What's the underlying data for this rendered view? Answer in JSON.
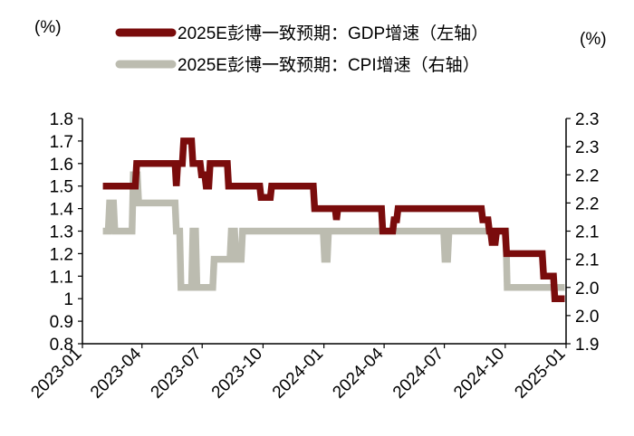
{
  "chart_data": {
    "type": "line",
    "left_unit": "(%)",
    "right_unit": "(%)",
    "colors": {
      "gdp": "#7a0c0c",
      "cpi": "#bcbcb0"
    },
    "x_ticks": [
      "2023-01",
      "2023-04",
      "2023-07",
      "2023-10",
      "2024-01",
      "2024-04",
      "2024-07",
      "2024-10",
      "2025-01"
    ],
    "x_range": [
      "2023-01-01",
      "2025-01-01"
    ],
    "y_left": {
      "ylim": [
        0.8,
        1.8
      ],
      "ticks": [
        0.8,
        0.9,
        1,
        1.1,
        1.2,
        1.3,
        1.4,
        1.5,
        1.6,
        1.7,
        1.8
      ],
      "tick_labels": [
        "0.8",
        "0.9",
        "1",
        "1.1",
        "1.2",
        "1.3",
        "1.4",
        "1.5",
        "1.6",
        "1.7",
        "1.8"
      ]
    },
    "y_right": {
      "ylim": [
        1.9,
        2.3
      ],
      "ticks": [
        1.9,
        1.95,
        2.0,
        2.05,
        2.1,
        2.15,
        2.2,
        2.25,
        2.3
      ],
      "tick_labels": [
        "1.9",
        "2.0",
        "2.0",
        "2.1",
        "2.1",
        "2.2",
        "2.2",
        "2.3",
        "2.3"
      ]
    },
    "series": [
      {
        "name": "2025E彭博一致预期：GDP增速（左轴）",
        "axis": "left",
        "colorKey": "gdp",
        "points": [
          [
            "2023-02-01",
            1.5
          ],
          [
            "2023-03-22",
            1.5
          ],
          [
            "2023-03-24",
            1.6
          ],
          [
            "2023-05-21",
            1.6
          ],
          [
            "2023-05-23",
            1.5
          ],
          [
            "2023-05-25",
            1.6
          ],
          [
            "2023-06-01",
            1.6
          ],
          [
            "2023-06-03",
            1.7
          ],
          [
            "2023-06-15",
            1.7
          ],
          [
            "2023-06-17",
            1.6
          ],
          [
            "2023-06-28",
            1.6
          ],
          [
            "2023-06-30",
            1.55
          ],
          [
            "2023-07-05",
            1.55
          ],
          [
            "2023-07-07",
            1.5
          ],
          [
            "2023-07-11",
            1.5
          ],
          [
            "2023-07-13",
            1.6
          ],
          [
            "2023-08-08",
            1.6
          ],
          [
            "2023-08-10",
            1.5
          ],
          [
            "2023-09-26",
            1.5
          ],
          [
            "2023-09-28",
            1.45
          ],
          [
            "2023-10-12",
            1.45
          ],
          [
            "2023-10-14",
            1.5
          ],
          [
            "2023-12-16",
            1.5
          ],
          [
            "2023-12-18",
            1.4
          ],
          [
            "2024-01-18",
            1.4
          ],
          [
            "2024-01-20",
            1.35
          ],
          [
            "2024-01-22",
            1.4
          ],
          [
            "2024-03-28",
            1.4
          ],
          [
            "2024-03-30",
            1.3
          ],
          [
            "2024-04-14",
            1.3
          ],
          [
            "2024-04-16",
            1.35
          ],
          [
            "2024-04-20",
            1.35
          ],
          [
            "2024-04-22",
            1.4
          ],
          [
            "2024-08-26",
            1.4
          ],
          [
            "2024-08-28",
            1.35
          ],
          [
            "2024-09-05",
            1.35
          ],
          [
            "2024-09-07",
            1.3
          ],
          [
            "2024-09-09",
            1.3
          ],
          [
            "2024-09-11",
            1.25
          ],
          [
            "2024-09-16",
            1.25
          ],
          [
            "2024-09-18",
            1.3
          ],
          [
            "2024-10-01",
            1.3
          ],
          [
            "2024-10-03",
            1.2
          ],
          [
            "2024-11-26",
            1.2
          ],
          [
            "2024-11-28",
            1.1
          ],
          [
            "2024-12-13",
            1.1
          ],
          [
            "2024-12-15",
            1.0
          ],
          [
            "2024-12-30",
            1.0
          ]
        ]
      },
      {
        "name": "2025E彭博一致预期：CPI增速（右轴）",
        "axis": "right",
        "colorKey": "cpi",
        "points": [
          [
            "2023-02-01",
            2.1
          ],
          [
            "2023-02-09",
            2.1
          ],
          [
            "2023-02-11",
            2.15
          ],
          [
            "2023-02-17",
            2.15
          ],
          [
            "2023-02-19",
            2.1
          ],
          [
            "2023-03-17",
            2.1
          ],
          [
            "2023-03-19",
            2.2
          ],
          [
            "2023-03-25",
            2.2
          ],
          [
            "2023-03-27",
            2.15
          ],
          [
            "2023-05-21",
            2.15
          ],
          [
            "2023-05-23",
            2.1
          ],
          [
            "2023-05-28",
            2.1
          ],
          [
            "2023-05-30",
            2.0
          ],
          [
            "2023-06-15",
            2.0
          ],
          [
            "2023-06-17",
            2.1
          ],
          [
            "2023-06-21",
            2.1
          ],
          [
            "2023-06-23",
            2.0
          ],
          [
            "2023-07-17",
            2.0
          ],
          [
            "2023-07-19",
            2.05
          ],
          [
            "2023-08-12",
            2.05
          ],
          [
            "2023-08-14",
            2.1
          ],
          [
            "2023-08-19",
            2.1
          ],
          [
            "2023-08-21",
            2.05
          ],
          [
            "2023-08-29",
            2.05
          ],
          [
            "2023-08-31",
            2.1
          ],
          [
            "2023-12-31",
            2.1
          ],
          [
            "2024-01-02",
            2.05
          ],
          [
            "2024-01-06",
            2.05
          ],
          [
            "2024-01-08",
            2.1
          ],
          [
            "2024-06-30",
            2.1
          ],
          [
            "2024-07-02",
            2.05
          ],
          [
            "2024-07-06",
            2.05
          ],
          [
            "2024-07-08",
            2.1
          ],
          [
            "2024-10-02",
            2.1
          ],
          [
            "2024-10-04",
            2.0
          ],
          [
            "2024-12-30",
            2.0
          ]
        ]
      }
    ]
  }
}
